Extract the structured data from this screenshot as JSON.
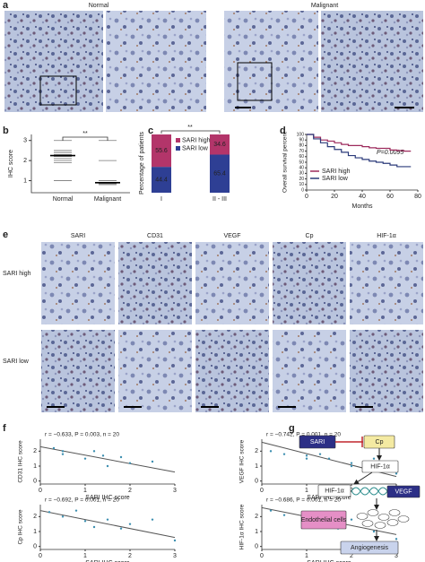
{
  "panel_labels": [
    "a",
    "b",
    "c",
    "d",
    "e",
    "f",
    "g"
  ],
  "a": {
    "titles": [
      "Normal",
      "Malignant"
    ]
  },
  "b": {
    "type": "dot",
    "ylabel": "IHC score",
    "categories": [
      "Normal",
      "Malignant"
    ],
    "values": [
      [
        1,
        1.9,
        2.0,
        2.1,
        2.2,
        2.3,
        2.4,
        2.5,
        3
      ],
      [
        0.8,
        0.85,
        0.9,
        1.0,
        2,
        3
      ]
    ],
    "means": [
      2.25,
      0.9
    ],
    "ylim": [
      0.4,
      3.3
    ],
    "yticks": [
      1,
      2,
      3
    ],
    "annotation": "**"
  },
  "c": {
    "type": "stacked_bar",
    "ylabel": "Percentage of patients",
    "categories": [
      "I",
      "II - III"
    ],
    "series": [
      {
        "name": "SARI low",
        "color": "#2e3f94",
        "values": [
          44.4,
          65.4
        ]
      },
      {
        "name": "SARI high",
        "color": "#b3356a",
        "values": [
          55.6,
          34.6
        ]
      }
    ],
    "ylim": [
      0,
      100
    ],
    "annotation": "**"
  },
  "d": {
    "type": "line",
    "ylabel": "Overall survival percent",
    "xlabel": "Months",
    "xlim": [
      0,
      80
    ],
    "xticks": [
      0,
      20,
      40,
      60,
      80
    ],
    "ylim": [
      0,
      100
    ],
    "yticks": [
      0,
      10,
      20,
      30,
      40,
      50,
      60,
      70,
      80,
      90,
      100
    ],
    "annotation": "P=0.0095",
    "series": [
      {
        "name": "SARI high",
        "color": "#9c2a5c",
        "x": [
          0,
          5,
          10,
          15,
          20,
          25,
          30,
          40,
          45,
          50,
          60,
          65,
          70,
          75
        ],
        "values": [
          100,
          95,
          90,
          88,
          85,
          82,
          80,
          78,
          76,
          75,
          72,
          71,
          70,
          70
        ]
      },
      {
        "name": "SARI low",
        "color": "#2b3a7a",
        "x": [
          0,
          5,
          10,
          15,
          20,
          25,
          30,
          35,
          40,
          45,
          50,
          55,
          60,
          65,
          70,
          75
        ],
        "values": [
          100,
          92,
          85,
          78,
          73,
          68,
          62,
          58,
          55,
          52,
          50,
          48,
          45,
          42,
          42,
          42
        ]
      }
    ]
  },
  "e": {
    "columns": [
      "SARI",
      "CD31",
      "VEGF",
      "Cp",
      "HIF-1α"
    ],
    "rows": [
      "SARI high",
      "SARI low"
    ]
  },
  "f": {
    "type": "scatter",
    "xlabel": "SARI IHC score",
    "xlim": [
      0,
      3
    ],
    "xticks": [
      0,
      1,
      2,
      3
    ],
    "ylim": [
      -0.2,
      2.8
    ],
    "yticks": [
      0,
      1,
      2
    ],
    "plots": [
      {
        "ylabel": "CD31 IHC score",
        "annotation": "r = −0.633, P = 0.003, n = 20",
        "x": [
          0.3,
          0.5,
          0.5,
          1,
          1.2,
          1.4,
          1.5,
          1.8,
          2,
          2.5
        ],
        "values": [
          2.2,
          1.8,
          2.0,
          1.5,
          2.0,
          1.7,
          1.0,
          1.6,
          1.2,
          1.3
        ],
        "fit": [
          2.3,
          0.6
        ]
      },
      {
        "ylabel": "VEGF IHC score",
        "annotation": "r = −0.742, P = 0.001, n = 20",
        "x": [
          0.2,
          0.5,
          1,
          1,
          1.3,
          1.5,
          2,
          2,
          2.5,
          3
        ],
        "values": [
          2,
          1.8,
          1.5,
          1.7,
          1.8,
          1.5,
          1,
          1.2,
          1.5,
          0.5
        ],
        "fit": [
          2.6,
          0.3
        ]
      },
      {
        "ylabel": "Cp IHC score",
        "annotation": "r = −0.692, P = 0.001, n = 20",
        "x": [
          0.2,
          0.5,
          0.8,
          1,
          1.2,
          1.5,
          1.8,
          2,
          2.5,
          3
        ],
        "values": [
          2.3,
          2,
          2.4,
          1.7,
          1.3,
          1.8,
          1.2,
          1.5,
          1.8,
          0.4
        ],
        "fit": [
          2.4,
          0.6
        ]
      },
      {
        "ylabel": "HIF-1α IHC score",
        "annotation": "r = −0.686, P = 0.001, n = 20",
        "x": [
          0.2,
          0.5,
          1,
          1.1,
          1.3,
          1.5,
          1.7,
          2,
          2.5,
          3
        ],
        "values": [
          2.4,
          2.1,
          2.0,
          1.8,
          2.2,
          1.6,
          1.2,
          1.8,
          1.0,
          0.5
        ],
        "fit": [
          2.6,
          0.8
        ]
      }
    ]
  },
  "g": {
    "nodes": [
      "SARI",
      "Cp",
      "HIF-1α",
      "HIF-1α",
      "VEGF",
      "Endothelial cells",
      "Angiogenesis"
    ]
  }
}
